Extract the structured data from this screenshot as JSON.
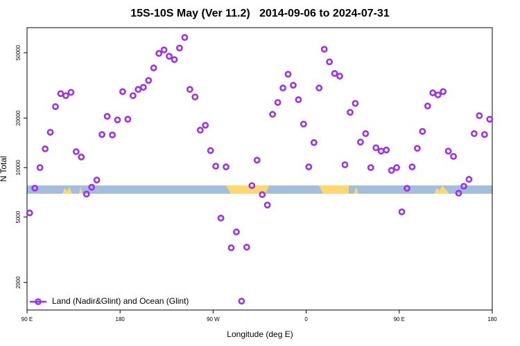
{
  "chart_data": {
    "type": "scatter",
    "title": "15S-10S May (Ver 11.2)   2014-09-06 to 2024-07-31",
    "x_label": "Longitude (deg E)",
    "y_label": "N Total",
    "log_y": true,
    "xlim": [
      90,
      540
    ],
    "xticks": [
      {
        "value": 90,
        "label": "90 E"
      },
      180,
      {
        "value": 270,
        "label": "90 W"
      },
      {
        "value": 360,
        "label": "0"
      },
      {
        "value": 450,
        "label": "90 E"
      },
      {
        "value": 540,
        "label": "180"
      }
    ],
    "ylim": [
      1360,
      71000
    ],
    "yticks": [
      2000,
      5000,
      10000,
      20000,
      50000
    ],
    "legend": "bottom-left",
    "series": [
      {
        "name": "Land (Nadir&Glint) and Ocean (Glint)",
        "color": "#9b30f0",
        "x": [
          92.5,
          97.5,
          102.5,
          107.5,
          112.5,
          117.5,
          122.5,
          127.5,
          132.5,
          137.5,
          142.5,
          147.5,
          152.5,
          157.5,
          162.5,
          167.5,
          172.5,
          177.5,
          182.5,
          187.5,
          192.5,
          197.5,
          202.5,
          207.5,
          212.5,
          217.5,
          222.5,
          227.5,
          232.5,
          237.5,
          242.5,
          247.5,
          252.5,
          257.5,
          262.5,
          267.5,
          272.5,
          277.5,
          282.5,
          287.5,
          292.5,
          297.5,
          302.5,
          307.5,
          312.5,
          317.5,
          322.5,
          327.5,
          332.5,
          337.5,
          342.5,
          347.5,
          352.5,
          357.5,
          362.5,
          367.5,
          372.5,
          377.5,
          382.5,
          387.5,
          392.5,
          397.5,
          402.5,
          407.5,
          412.5,
          417.5,
          422.5,
          427.5,
          432.5,
          437.5,
          442.5,
          447.5,
          452.5,
          457.5,
          462.5,
          467.5,
          472.5,
          477.5,
          482.5,
          487.5,
          492.5,
          497.5,
          502.5,
          507.5,
          512.5,
          517.5,
          522.5,
          527.5,
          532.5,
          537.5
        ],
        "values": [
          5300,
          7500,
          10000,
          13000,
          16400,
          23500,
          28200,
          27400,
          28700,
          12500,
          11600,
          6900,
          7600,
          8400,
          15900,
          20500,
          15800,
          19500,
          29000,
          19700,
          27400,
          29900,
          30800,
          33900,
          40400,
          49500,
          52000,
          47600,
          45400,
          53400,
          61900,
          29900,
          26900,
          16900,
          18100,
          12700,
          10200,
          4930,
          10100,
          3250,
          4060,
          1540,
          3280,
          7770,
          11100,
          6850,
          5920,
          21100,
          24900,
          30500,
          37000,
          31700,
          25900,
          18400,
          10100,
          14200,
          30500,
          52500,
          44000,
          37400,
          36000,
          10400,
          21700,
          24600,
          14300,
          16100,
          10000,
          13200,
          12600,
          12800,
          9620,
          10000,
          5380,
          7480,
          10100,
          13100,
          16600,
          23700,
          28500,
          27700,
          29000,
          12600,
          11700,
          6990,
          7700,
          8480,
          16100,
          20700,
          15900,
          19700
        ]
      }
    ]
  }
}
